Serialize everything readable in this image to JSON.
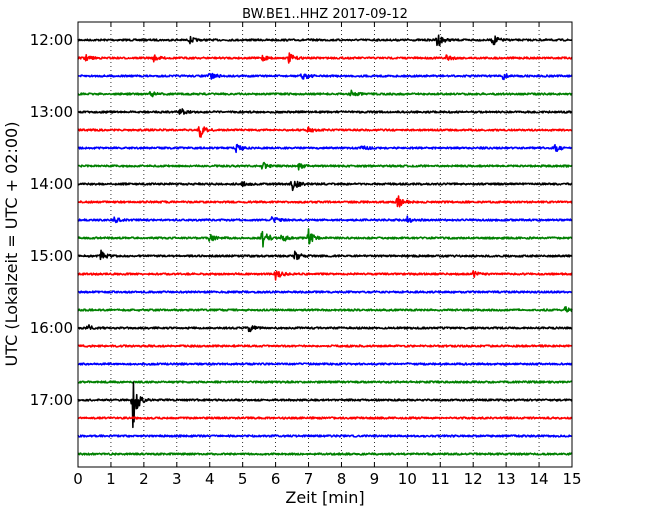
{
  "chart_data": {
    "type": "line",
    "title": "BW.BE1..HHZ 2017-09-12",
    "xlabel": "Zeit  [min]",
    "ylabel": "UTC (Lokalzeit = UTC + 02:00)",
    "xlim": [
      0,
      15
    ],
    "x_ticks": [
      "0",
      "1",
      "2",
      "3",
      "4",
      "5",
      "6",
      "7",
      "8",
      "9",
      "10",
      "11",
      "12",
      "13",
      "14",
      "15"
    ],
    "y_ticks": [
      "12:00",
      "13:00",
      "14:00",
      "15:00",
      "16:00",
      "17:00"
    ],
    "grid": "dotted vertical",
    "colors": [
      "#000000",
      "#ff0000",
      "#0000ff",
      "#008000"
    ],
    "trace_start_times": [
      "12:00",
      "12:15",
      "12:30",
      "12:45",
      "13:00",
      "13:15",
      "13:30",
      "13:45",
      "14:00",
      "14:15",
      "14:30",
      "14:45",
      "15:00",
      "15:15",
      "15:30",
      "15:45",
      "16:00",
      "16:15",
      "16:30",
      "16:45",
      "17:00",
      "17:15",
      "17:30",
      "17:45"
    ],
    "events": [
      {
        "trace": 0,
        "minute": 3.4,
        "amp": 0.3
      },
      {
        "trace": 0,
        "minute": 10.9,
        "amp": 0.9
      },
      {
        "trace": 0,
        "minute": 12.6,
        "amp": 0.6
      },
      {
        "trace": 1,
        "minute": 0.2,
        "amp": 0.4
      },
      {
        "trace": 1,
        "minute": 2.3,
        "amp": 0.3
      },
      {
        "trace": 1,
        "minute": 5.6,
        "amp": 0.3
      },
      {
        "trace": 1,
        "minute": 6.4,
        "amp": 0.5
      },
      {
        "trace": 1,
        "minute": 11.2,
        "amp": 0.4
      },
      {
        "trace": 2,
        "minute": 4.0,
        "amp": 0.5
      },
      {
        "trace": 2,
        "minute": 6.8,
        "amp": 0.6
      },
      {
        "trace": 2,
        "minute": 12.9,
        "amp": 0.4
      },
      {
        "trace": 3,
        "minute": 2.2,
        "amp": 0.3
      },
      {
        "trace": 3,
        "minute": 8.3,
        "amp": 0.4
      },
      {
        "trace": 4,
        "minute": 3.1,
        "amp": 0.4
      },
      {
        "trace": 5,
        "minute": 3.7,
        "amp": 0.9
      },
      {
        "trace": 5,
        "minute": 7.0,
        "amp": 0.3
      },
      {
        "trace": 6,
        "minute": 4.8,
        "amp": 0.4
      },
      {
        "trace": 6,
        "minute": 8.6,
        "amp": 0.4
      },
      {
        "trace": 6,
        "minute": 14.5,
        "amp": 0.4
      },
      {
        "trace": 7,
        "minute": 5.6,
        "amp": 0.4
      },
      {
        "trace": 7,
        "minute": 6.7,
        "amp": 0.3
      },
      {
        "trace": 8,
        "minute": 6.5,
        "amp": 1.0
      },
      {
        "trace": 8,
        "minute": 5.0,
        "amp": 0.3
      },
      {
        "trace": 9,
        "minute": 9.7,
        "amp": 0.8
      },
      {
        "trace": 10,
        "minute": 1.1,
        "amp": 0.3
      },
      {
        "trace": 10,
        "minute": 5.9,
        "amp": 0.4
      },
      {
        "trace": 10,
        "minute": 10.0,
        "amp": 0.4
      },
      {
        "trace": 11,
        "minute": 4.0,
        "amp": 0.4
      },
      {
        "trace": 11,
        "minute": 5.6,
        "amp": 1.3
      },
      {
        "trace": 11,
        "minute": 6.2,
        "amp": 0.5
      },
      {
        "trace": 11,
        "minute": 7.0,
        "amp": 0.9
      },
      {
        "trace": 12,
        "minute": 0.7,
        "amp": 0.5
      },
      {
        "trace": 12,
        "minute": 6.6,
        "amp": 0.6
      },
      {
        "trace": 13,
        "minute": 6.0,
        "amp": 0.8
      },
      {
        "trace": 13,
        "minute": 12.0,
        "amp": 0.3
      },
      {
        "trace": 15,
        "minute": 14.8,
        "amp": 0.3
      },
      {
        "trace": 16,
        "minute": 0.3,
        "amp": 0.3
      },
      {
        "trace": 16,
        "minute": 5.2,
        "amp": 0.4
      },
      {
        "trace": 20,
        "minute": 1.65,
        "amp": 3.2
      }
    ]
  }
}
